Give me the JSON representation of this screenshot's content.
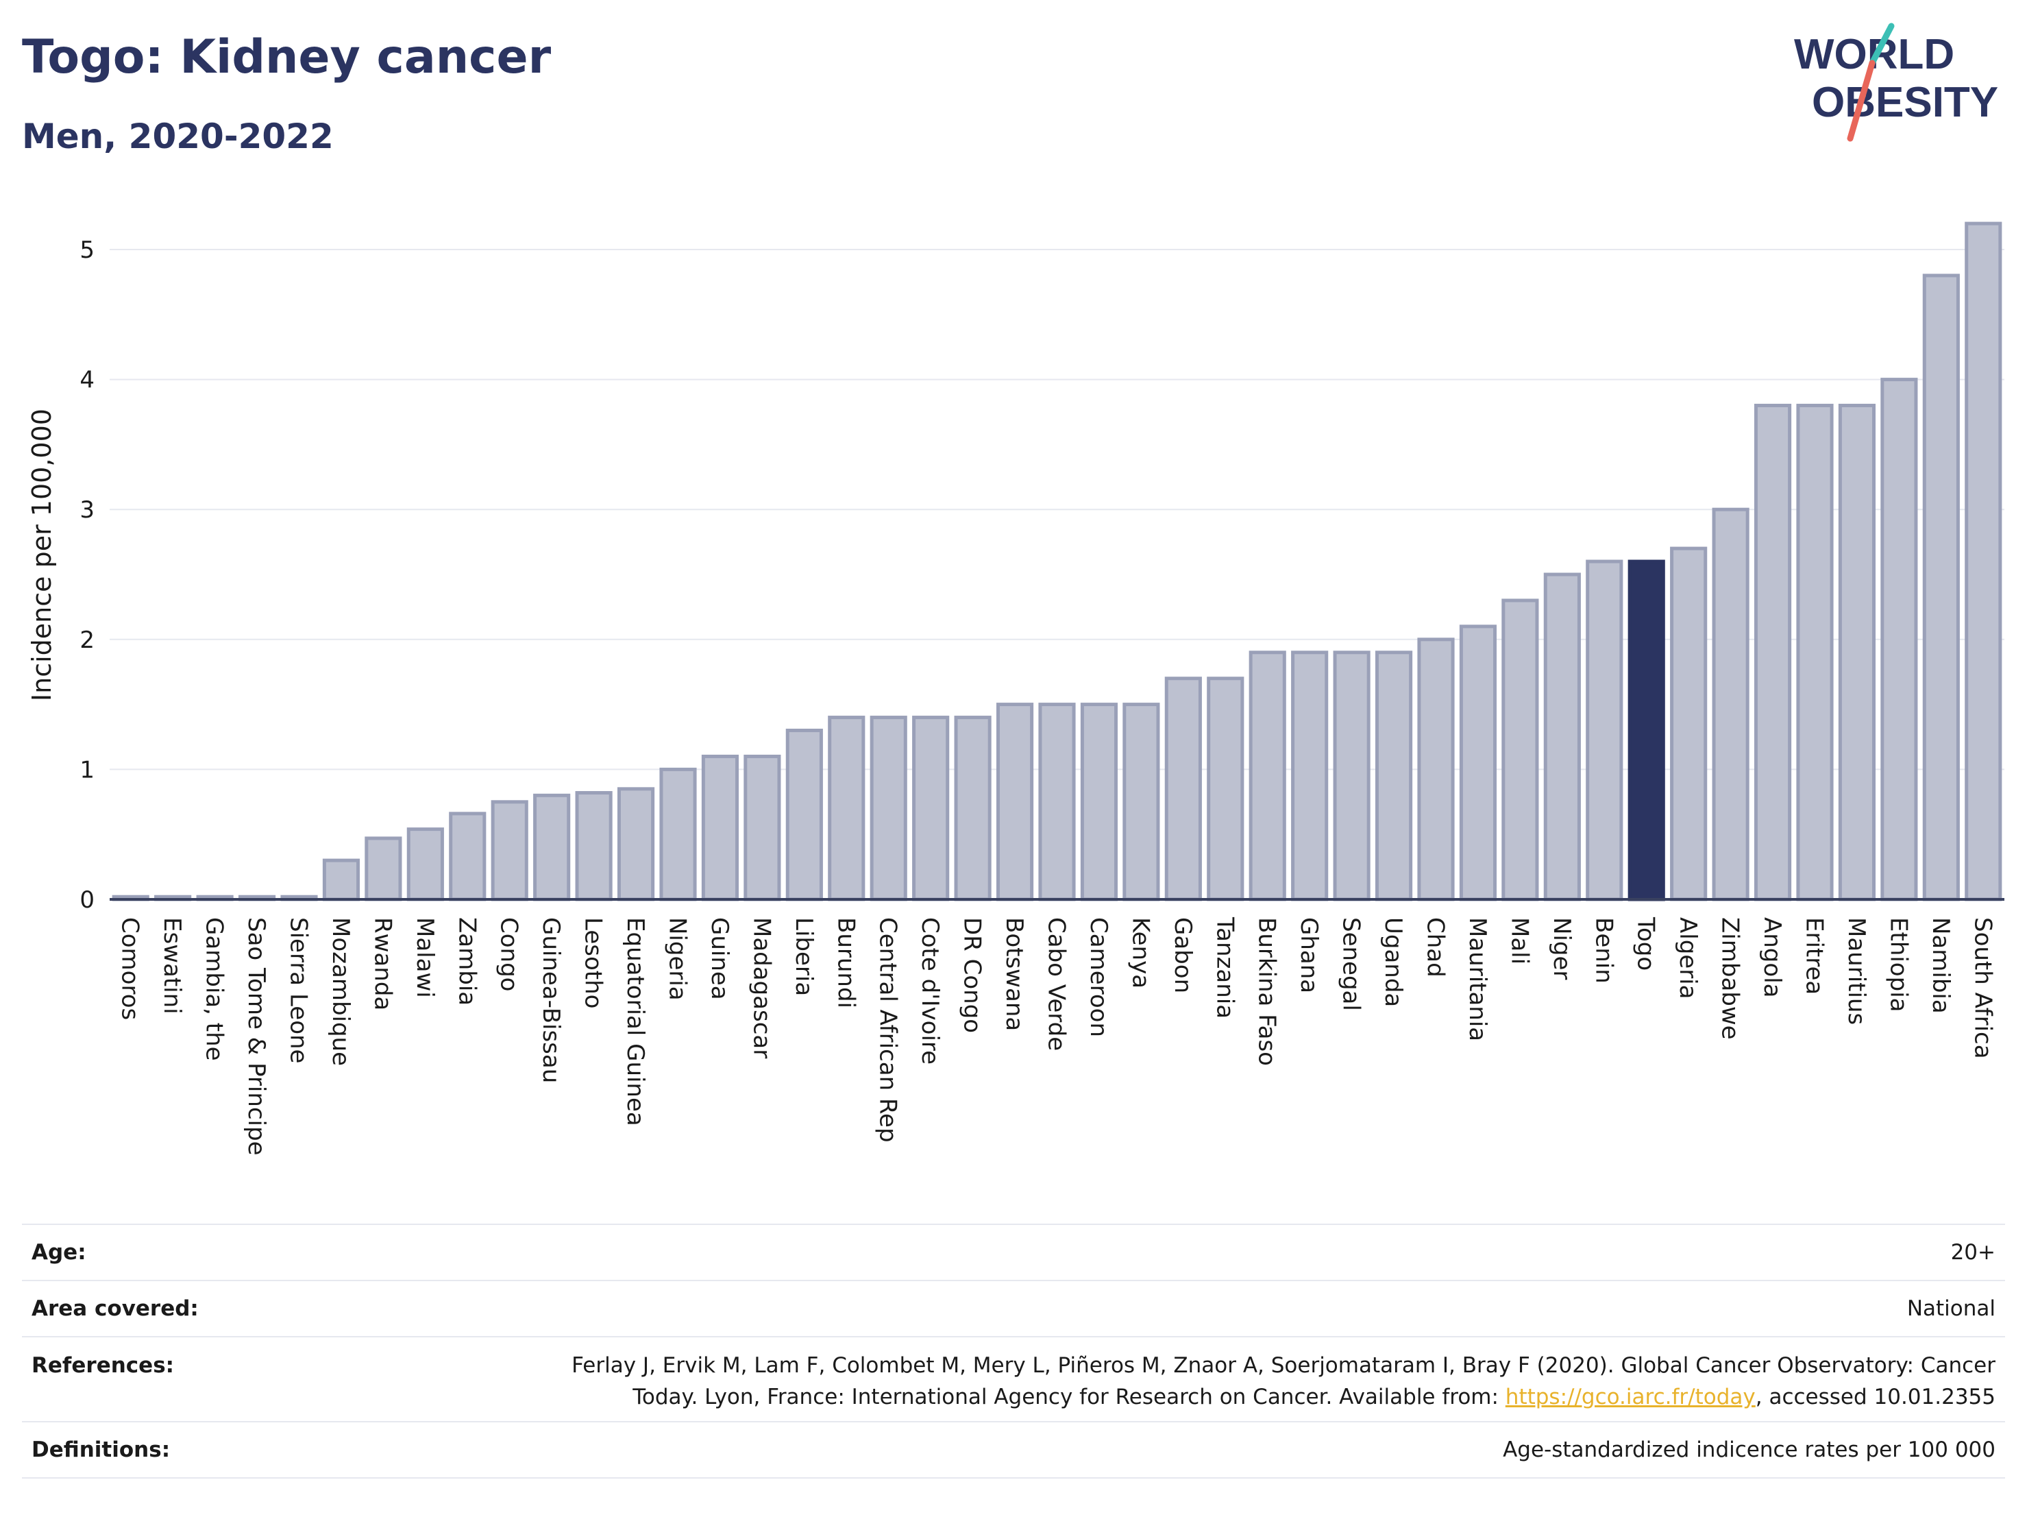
{
  "header": {
    "title": "Togo: Kidney cancer",
    "subtitle": "Men, 2020-2022",
    "logo_line1": "WORLD",
    "logo_line2": "OBESITY"
  },
  "colors": {
    "bar": "#bdc1d0",
    "bar_border": "#9aa0b8",
    "highlight": "#2b3461",
    "grid": "#e6e8ef",
    "axis": "#3a4260",
    "logo_teal": "#3cbfb5",
    "logo_coral": "#e8665a",
    "link": "#e8b22b"
  },
  "chart_data": {
    "type": "bar",
    "ylabel": "Incidence per 100,000",
    "ylim": [
      0,
      5.35
    ],
    "yticks": [
      0,
      1,
      2,
      3,
      4,
      5
    ],
    "grid": true,
    "highlight": "Togo",
    "categories": [
      "Comoros",
      "Eswatini",
      "Gambia, the",
      "Sao Tome & Principe",
      "Sierra Leone",
      "Mozambique",
      "Rwanda",
      "Malawi",
      "Zambia",
      "Congo",
      "Guinea-Bissau",
      "Lesotho",
      "Equatorial Guinea",
      "Nigeria",
      "Guinea",
      "Madagascar",
      "Liberia",
      "Burundi",
      "Central African Rep",
      "Cote d'Ivoire",
      "DR Congo",
      "Botswana",
      "Cabo Verde",
      "Cameroon",
      "Kenya",
      "Gabon",
      "Tanzania",
      "Burkina Faso",
      "Ghana",
      "Senegal",
      "Uganda",
      "Chad",
      "Mauritania",
      "Mali",
      "Niger",
      "Benin",
      "Togo",
      "Algeria",
      "Zimbabwe",
      "Angola",
      "Eritrea",
      "Mauritius",
      "Ethiopia",
      "Namibia",
      "South Africa"
    ],
    "values": [
      0.02,
      0.02,
      0.02,
      0.02,
      0.02,
      0.3,
      0.47,
      0.54,
      0.66,
      0.75,
      0.8,
      0.82,
      0.85,
      1.0,
      1.1,
      1.1,
      1.3,
      1.4,
      1.4,
      1.4,
      1.4,
      1.5,
      1.5,
      1.5,
      1.5,
      1.7,
      1.7,
      1.9,
      1.9,
      1.9,
      1.9,
      2.0,
      2.1,
      2.3,
      2.5,
      2.6,
      2.6,
      2.7,
      3.0,
      3.8,
      3.8,
      3.8,
      4.0,
      4.8,
      5.2
    ]
  },
  "footer": {
    "age_label": "Age:",
    "age_value": "20+",
    "area_label": "Area covered:",
    "area_value": "National",
    "references_label": "References:",
    "references_text1": "Ferlay J, Ervik M, Lam F, Colombet M, Mery L, Piñeros M, Znaor A, Soerjomataram I, Bray F (2020). Global Cancer Observatory: Cancer",
    "references_text2": "Today. Lyon, France: International Agency for Research on Cancer. Available from: ",
    "references_link": "https://gco.iarc.fr/today",
    "references_text3": ", accessed 10.01.2355",
    "definitions_label": "Definitions:",
    "definitions_value": "Age-standardized indicence rates per 100 000"
  }
}
